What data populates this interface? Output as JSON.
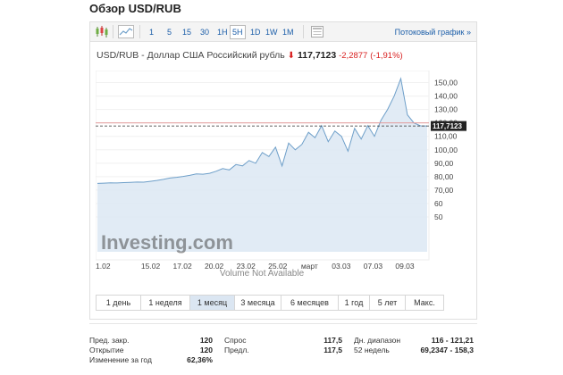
{
  "page": {
    "title": "Обзор USD/RUB"
  },
  "toolbar": {
    "timeframes": [
      "1",
      "5",
      "15",
      "30",
      "1H",
      "5H",
      "1D",
      "1W",
      "1M"
    ],
    "active_timeframe": "5H",
    "stream_link": "Потоковый график",
    "stream_link_arrow": "»",
    "icons": [
      "candlestick-icon",
      "area-chart-icon",
      "settings-panel-icon"
    ]
  },
  "quote": {
    "pair": "USD/RUB - Доллар США Российский рубль",
    "direction_icon": "down-arrow-icon",
    "price": "117,7123",
    "change": "-2,2877",
    "change_percent": "(-1,91%)"
  },
  "chart_data": {
    "type": "area",
    "x_ticks": [
      "1.02",
      "15.02",
      "17.02",
      "20.02",
      "23.02",
      "25.02",
      "март",
      "03.03",
      "07.03",
      "09.03"
    ],
    "y_ticks": [
      "150,00",
      "140,00",
      "130,00",
      "120,00",
      "110,00",
      "100,00",
      "90,00",
      "80,00",
      "70,00",
      "60",
      "50"
    ],
    "ylim": [
      50,
      155
    ],
    "current_price_label": "117,7123",
    "previous_close": 120,
    "watermark": "Investing.com",
    "volume_note": "Volume Not Available",
    "x": [
      0,
      2,
      4,
      6,
      8,
      10,
      12,
      14,
      16,
      18,
      20,
      22,
      24,
      26,
      28,
      30,
      32,
      34,
      36,
      38,
      40,
      42,
      44,
      46,
      48,
      50,
      52,
      54,
      56,
      58,
      60,
      62,
      64,
      66,
      68,
      70,
      72,
      74,
      76,
      78,
      80,
      82,
      84,
      86,
      88,
      90,
      92,
      94,
      96,
      98,
      100
    ],
    "y": [
      75,
      75.2,
      75.4,
      75.3,
      75.6,
      75.8,
      76,
      75.9,
      76.5,
      77.2,
      78,
      79,
      79.5,
      80.2,
      81,
      82,
      81.8,
      82.5,
      84,
      86,
      85,
      89,
      88,
      92,
      90,
      98,
      95,
      102,
      88,
      105,
      100,
      104,
      113,
      109,
      118,
      106,
      114,
      110,
      99,
      116,
      108,
      118,
      110,
      122,
      130,
      140,
      153,
      126,
      120,
      117.8,
      117.7
    ]
  },
  "ranges": {
    "items": [
      "1 день",
      "1 неделя",
      "1 месяц",
      "3 месяца",
      "6 месяцев",
      "1 год",
      "5 лет",
      "Макс."
    ],
    "active": "1 месяц"
  },
  "stats": {
    "col1": [
      {
        "label": "Пред. закр.",
        "value": "120"
      },
      {
        "label": "Открытие",
        "value": "120"
      },
      {
        "label": "Изменение за год",
        "value": "62,36%"
      }
    ],
    "col2": [
      {
        "label": "Спрос",
        "value": "117,5"
      },
      {
        "label": "Предл.",
        "value": "117,5"
      }
    ],
    "col3": [
      {
        "label": "Дн. диапазон",
        "value": "116 - 121,21"
      },
      {
        "label": "52 недель",
        "value": "69,2347 - 158,3"
      }
    ]
  },
  "colors": {
    "accent": "#1a5da8",
    "negative": "#d81f1f",
    "line": "#6e9fc9",
    "fill": "#dce8f3"
  }
}
